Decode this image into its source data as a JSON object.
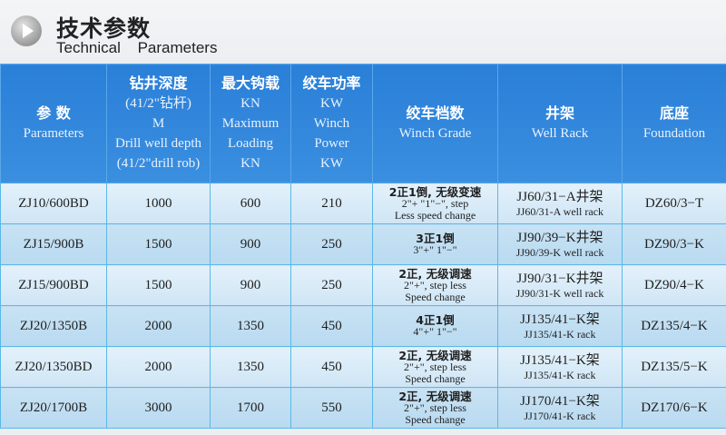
{
  "title": {
    "zh": "技术参数",
    "en": "Technical Parameters",
    "icon": "play-circle-icon"
  },
  "header": [
    {
      "zh": "参 数",
      "lines": [
        "Parameters"
      ]
    },
    {
      "zh": "钻井深度",
      "lines": [
        "(41/2\"钻杆)",
        "M",
        "Drill well depth",
        "(41/2\"drill rob)"
      ]
    },
    {
      "zh": "最大钩载",
      "lines": [
        "KN",
        "Maximum",
        "Loading",
        "KN"
      ]
    },
    {
      "zh": "绞车功率",
      "lines": [
        "KW",
        "Winch",
        "Power",
        "KW"
      ]
    },
    {
      "zh": "绞车档数",
      "lines": [
        "Winch Grade"
      ]
    },
    {
      "zh": "井架",
      "lines": [
        "Well Rack"
      ]
    },
    {
      "zh": "底座",
      "lines": [
        "Foundation"
      ]
    }
  ],
  "rows": [
    {
      "model": "ZJ10/600BD",
      "depth": "1000",
      "load": "600",
      "power": "210",
      "grade_zh": "2正1倒, 无级变速",
      "grade_en": [
        "2\"+ \"1\"−\", step",
        "Less  speed  change"
      ],
      "rack_zh": "JJ60/31−A井架",
      "rack_en": "JJ60/31-A well rack",
      "foundation": "DZ60/3−T"
    },
    {
      "model": "ZJ15/900B",
      "depth": "1500",
      "load": "900",
      "power": "250",
      "grade_zh": "3正1倒",
      "grade_en": [
        "3\"+\"  1\"−\""
      ],
      "rack_zh": "JJ90/39−K井架",
      "rack_en": "JJ90/39-K well rack",
      "foundation": "DZ90/3−K"
    },
    {
      "model": "ZJ15/900BD",
      "depth": "1500",
      "load": "900",
      "power": "250",
      "grade_zh": "2正, 无级调速",
      "grade_en": [
        "2\"+\", step less",
        "Speed  change"
      ],
      "rack_zh": "JJ90/31−K井架",
      "rack_en": "JJ90/31-K well rack",
      "foundation": "DZ90/4−K"
    },
    {
      "model": "ZJ20/1350B",
      "depth": "2000",
      "load": "1350",
      "power": "450",
      "grade_zh": "4正1倒",
      "grade_en": [
        "4\"+\"  1\"−\""
      ],
      "rack_zh": "JJ135/41−K架",
      "rack_en": "JJ135/41-K rack",
      "foundation": "DZ135/4−K"
    },
    {
      "model": "ZJ20/1350BD",
      "depth": "2000",
      "load": "1350",
      "power": "450",
      "grade_zh": "2正, 无级调速",
      "grade_en": [
        "2\"+\", step less",
        "Speed  change"
      ],
      "rack_zh": "JJ135/41−K架",
      "rack_en": "JJ135/41-K rack",
      "foundation": "DZ135/5−K"
    },
    {
      "model": "ZJ20/1700B",
      "depth": "3000",
      "load": "1700",
      "power": "550",
      "grade_zh": "2正, 无级调速",
      "grade_en": [
        "2\"+\", step less",
        "Speed  change"
      ],
      "rack_zh": "JJ170/41−K架",
      "rack_en": "JJ170/41-K rack",
      "foundation": "DZ170/6−K"
    }
  ]
}
